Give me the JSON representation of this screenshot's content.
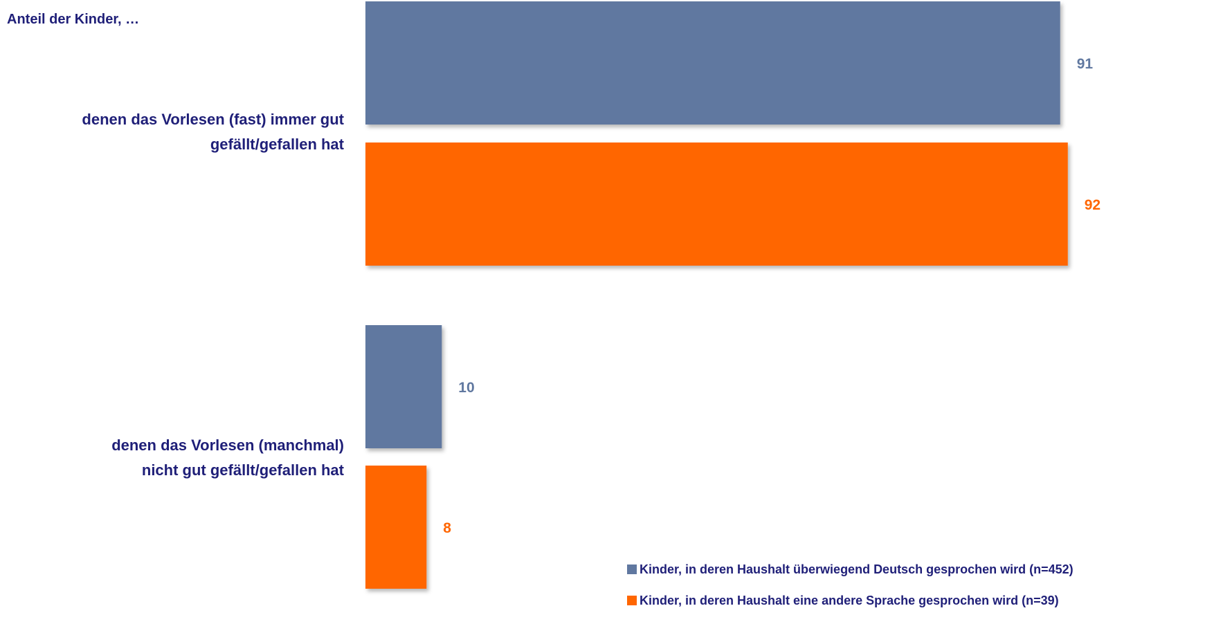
{
  "chart_data": {
    "type": "bar",
    "orientation": "horizontal",
    "subtitle": "Anteil der Kinder, …",
    "categories": [
      [
        "denen das Vorlesen (fast) immer gut",
        "gefällt/gefallen hat"
      ],
      [
        "denen das Vorlesen (manchmal)",
        "nicht gut gefällt/gefallen hat"
      ]
    ],
    "series": [
      {
        "name": "Kinder, in deren Haushalt überwiegend Deutsch gesprochen wird (n=452)",
        "values": [
          91,
          10
        ],
        "color": "#6078a0"
      },
      {
        "name": "Kinder, in deren Haushalt eine andere Sprache gesprochen wird (n=39)",
        "values": [
          92,
          8
        ],
        "color": "#ff6600"
      }
    ],
    "xlim": [
      0,
      100
    ],
    "grid": false,
    "legend_position": "bottom-right",
    "data_labels": true
  }
}
